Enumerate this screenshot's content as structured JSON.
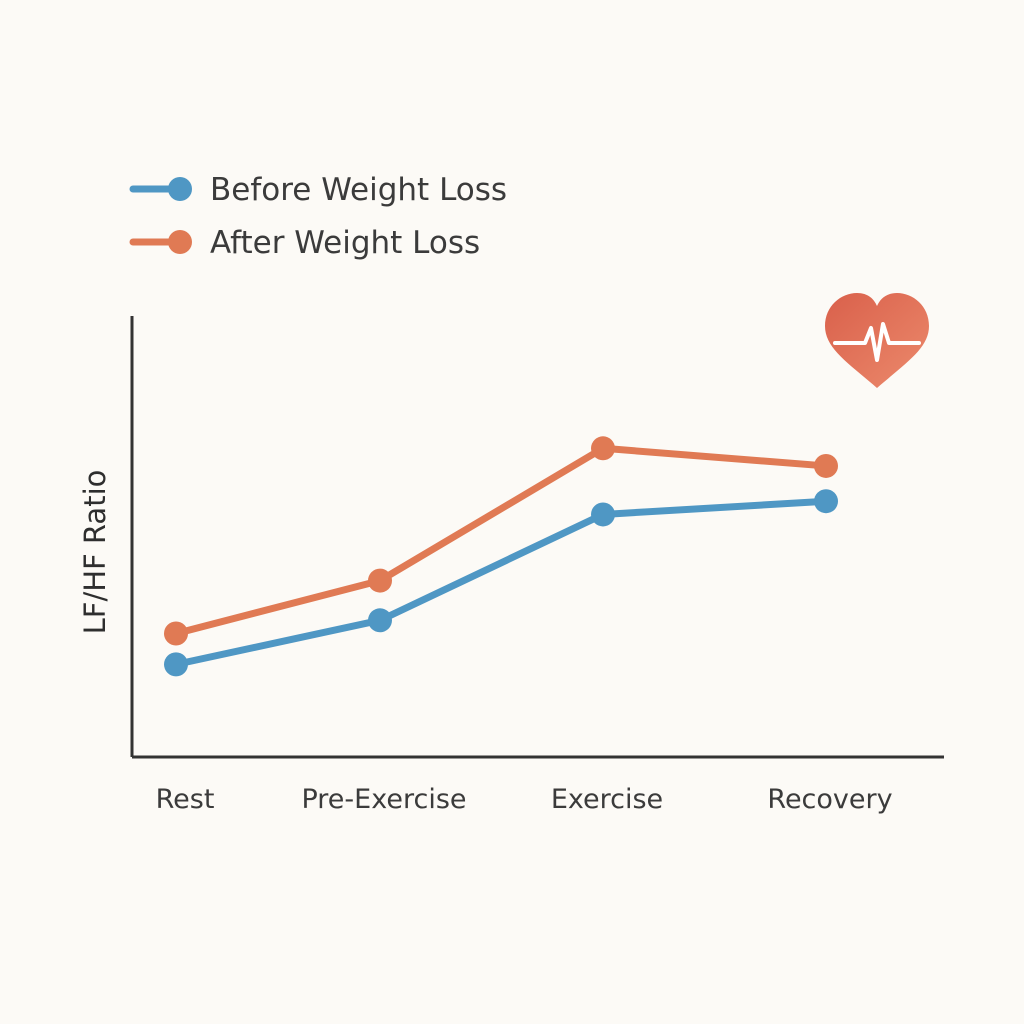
{
  "chart_data": {
    "type": "line",
    "title": "",
    "xlabel": "",
    "ylabel": "LF/HF Ratio",
    "categories": [
      "Rest",
      "Pre-Exercise",
      "Exercise",
      "Recovery"
    ],
    "ylim": [
      0,
      10
    ],
    "grid": false,
    "legend_position": "top-left",
    "series": [
      {
        "name": "Before Weight Loss",
        "color": "#4f97c4",
        "values": [
          2.1,
          3.1,
          5.5,
          5.8
        ]
      },
      {
        "name": "After Weight Loss",
        "color": "#e07a54",
        "values": [
          2.8,
          4.0,
          7.0,
          6.6
        ]
      }
    ]
  },
  "decorations": {
    "heart_icon": "heart-pulse-icon",
    "heart_color": "#e06a52"
  },
  "colors": {
    "axis": "#333333",
    "background": "#fcfaf6"
  }
}
